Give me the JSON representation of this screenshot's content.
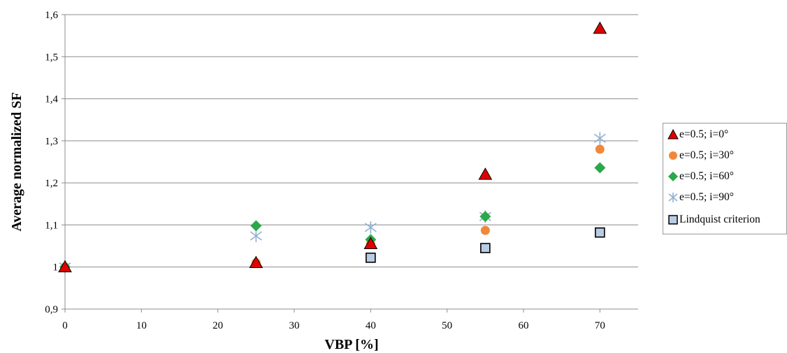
{
  "chart_data": {
    "type": "scatter",
    "title": "",
    "xlabel": "VBP  [%]",
    "ylabel": "Average  normalized  SF",
    "xlim": [
      0,
      75
    ],
    "ylim": [
      0.9,
      1.6
    ],
    "xticks": [
      0,
      10,
      20,
      30,
      40,
      50,
      60,
      70
    ],
    "yticks": [
      0.9,
      1.0,
      1.1,
      1.2,
      1.3,
      1.4,
      1.5,
      1.6
    ],
    "xtick_labels": [
      "0",
      "10",
      "20",
      "30",
      "40",
      "50",
      "60",
      "70"
    ],
    "ytick_labels": [
      "0,9",
      "1",
      "1,1",
      "1,2",
      "1,3",
      "1,4",
      "1,5",
      "1,6"
    ],
    "grid": "horizontal",
    "legend_position": "right",
    "series": [
      {
        "name": "e=0.5; i=0°",
        "marker": "triangle",
        "color": "#e00000",
        "x": [
          0,
          25,
          40,
          55,
          70
        ],
        "y": [
          1.0,
          1.01,
          1.055,
          1.22,
          1.567
        ]
      },
      {
        "name": "e=0.5; i=30°",
        "marker": "circle",
        "color": "#f0883c",
        "x": [
          0,
          25,
          40,
          55,
          70
        ],
        "y": [
          1.0,
          1.01,
          1.055,
          1.087,
          1.28
        ]
      },
      {
        "name": "e=0.5; i=60°",
        "marker": "diamond",
        "color": "#2aa84a",
        "x": [
          0,
          25,
          40,
          55,
          70
        ],
        "y": [
          1.0,
          1.098,
          1.065,
          1.12,
          1.236
        ]
      },
      {
        "name": "e=0.5; i=90°",
        "marker": "asterisk",
        "color": "#8fb0d0",
        "x": [
          0,
          25,
          40,
          55,
          70
        ],
        "y": [
          1.0,
          1.074,
          1.094,
          1.12,
          1.306
        ]
      },
      {
        "name": "Lindquist criterion",
        "marker": "square",
        "color": "#b8cce4",
        "x": [
          40,
          55,
          70
        ],
        "y": [
          1.022,
          1.045,
          1.082
        ]
      }
    ]
  }
}
